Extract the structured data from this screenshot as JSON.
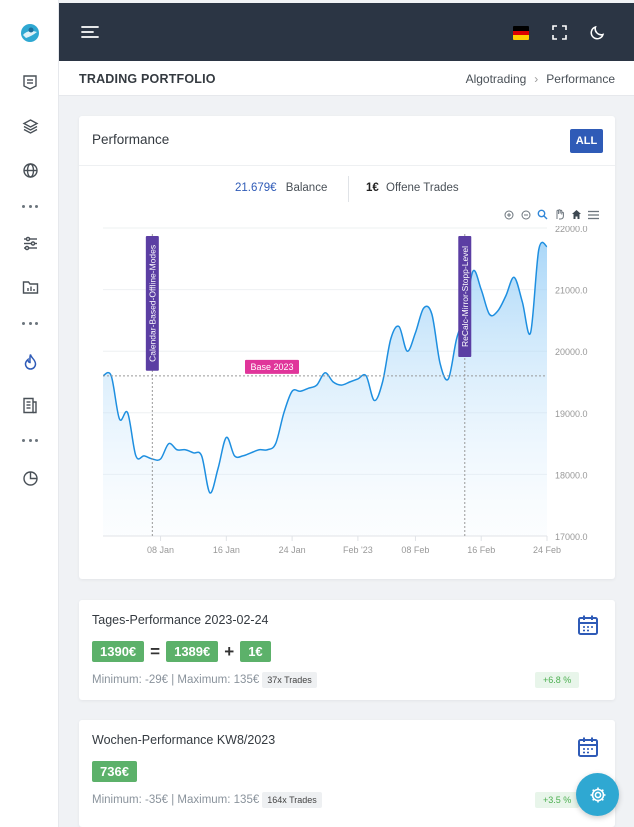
{
  "header": {
    "page_title": "TRADING PORTFOLIO",
    "breadcrumb": [
      "Algotrading",
      "Performance"
    ],
    "breadcrumb_separator": "›"
  },
  "performance_card": {
    "title": "Performance",
    "all_button": "ALL",
    "balance_value": "21.679€",
    "balance_label": "Balance",
    "open_trades_value": "1€",
    "open_trades_label": "Offene Trades"
  },
  "chart_data": {
    "type": "area",
    "x_ticks": [
      "08 Jan",
      "16 Jan",
      "24 Jan",
      "Feb '23",
      "08 Feb",
      "16 Feb",
      "24 Feb"
    ],
    "y_ticks": [
      "22000.0",
      "21000.0",
      "20000.0",
      "19000.0",
      "18000.0",
      "17000.0"
    ],
    "ylim": [
      17000,
      22000
    ],
    "series": [
      {
        "x": [
          "2023-01-01",
          "2023-01-02",
          "2023-01-03",
          "2023-01-04",
          "2023-01-05",
          "2023-01-06",
          "2023-01-07",
          "2023-01-08",
          "2023-01-09",
          "2023-01-10",
          "2023-01-11",
          "2023-01-12",
          "2023-01-13",
          "2023-01-14",
          "2023-01-15",
          "2023-01-16",
          "2023-01-17",
          "2023-01-18",
          "2023-01-19",
          "2023-01-20",
          "2023-01-21",
          "2023-01-22",
          "2023-01-23",
          "2023-01-24",
          "2023-01-25",
          "2023-01-26",
          "2023-01-27",
          "2023-01-28",
          "2023-01-29",
          "2023-01-30",
          "2023-01-31",
          "2023-02-01",
          "2023-02-02",
          "2023-02-03",
          "2023-02-04",
          "2023-02-05",
          "2023-02-06",
          "2023-02-07",
          "2023-02-08",
          "2023-02-09",
          "2023-02-10",
          "2023-02-11",
          "2023-02-12",
          "2023-02-13",
          "2023-02-14",
          "2023-02-15",
          "2023-02-16",
          "2023-02-17",
          "2023-02-18",
          "2023-02-19",
          "2023-02-20",
          "2023-02-21",
          "2023-02-22",
          "2023-02-23",
          "2023-02-24"
        ],
        "values": [
          19600,
          19600,
          18900,
          19000,
          18300,
          18300,
          18250,
          18250,
          18500,
          18400,
          18400,
          18350,
          18300,
          17700,
          18100,
          18600,
          18300,
          18300,
          18350,
          18400,
          18400,
          18500,
          19000,
          19350,
          19350,
          19400,
          19450,
          19650,
          19500,
          19450,
          19500,
          19550,
          19600,
          19200,
          19500,
          20200,
          20400,
          20000,
          20300,
          20700,
          20600,
          19800,
          19550,
          20200,
          20600,
          21300,
          21000,
          20600,
          20650,
          20900,
          21200,
          20800,
          20300,
          21650,
          21700
        ]
      }
    ],
    "annotations": [
      {
        "label": "Calendar-Based-Offline-Modes",
        "type": "x",
        "x": "2023-01-07"
      },
      {
        "label": "ReCalc-Mirror-Stopp-Level",
        "type": "x",
        "x": "2023-02-14"
      },
      {
        "label": "Base 2023",
        "type": "y",
        "y": 19600
      }
    ],
    "grid": true
  },
  "daily_card": {
    "title": "Tages-Performance 2023-02-24",
    "total": "1390€",
    "equals": "=",
    "closed": "1389€",
    "plus": "+",
    "open": "1€",
    "minmax": "Minimum: -29€ | Maximum: 135€",
    "trades": "37x Trades",
    "pct": "+6.8 %"
  },
  "weekly_card": {
    "title": "Wochen-Performance KW8/2023",
    "total": "736€",
    "minmax": "Minimum: -35€ | Maximum: 135€",
    "trades": "164x Trades",
    "pct": "+3.5 %"
  },
  "icons": {
    "accent": "#2f5bb7",
    "chart_line": "#1e8fe0",
    "annotation_purple": "#5b3ea3",
    "annotation_pink": "#e0359a"
  }
}
